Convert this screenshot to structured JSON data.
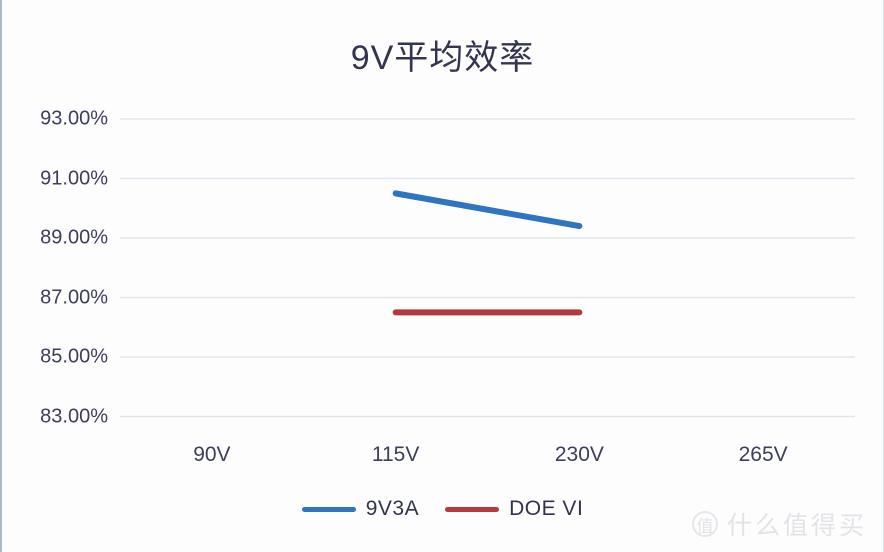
{
  "chart_data": {
    "type": "line",
    "title": "9V平均效率",
    "categories": [
      "90V",
      "115V",
      "230V",
      "265V"
    ],
    "series": [
      {
        "name": "9V3A",
        "color": "#2f74c0",
        "values": [
          null,
          90.5,
          89.4,
          null
        ]
      },
      {
        "name": "DOE VI",
        "color": "#b43a3e",
        "values": [
          null,
          86.5,
          86.5,
          null
        ]
      }
    ],
    "y_ticks": [
      93,
      91,
      89,
      87,
      85,
      83
    ],
    "y_tick_labels": [
      "93.00%",
      "91.00%",
      "89.00%",
      "87.00%",
      "85.00%",
      "83.00%"
    ],
    "ylim": [
      83,
      93
    ],
    "xlabel": "",
    "ylabel": "",
    "grid": "horizontal",
    "gridline_color": "#e3e6ec",
    "legend_position": "bottom",
    "line_width": 6
  },
  "watermark": {
    "badge": "值",
    "text": "什么值得买"
  }
}
